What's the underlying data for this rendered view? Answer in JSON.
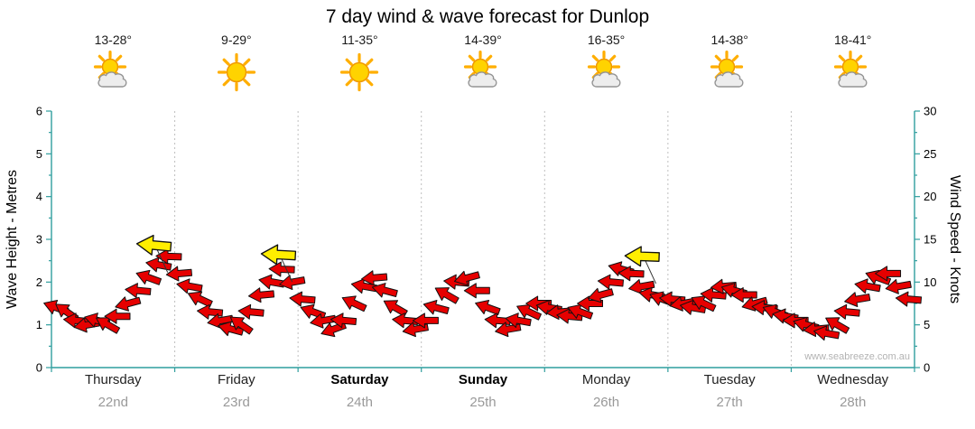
{
  "title": "7 day wind & wave forecast for Dunlop",
  "watermark": "www.seabreeze.com.au",
  "days": [
    {
      "name": "Thursday",
      "date": "22nd",
      "temp": "13-28°",
      "icon": "partly-cloudy",
      "bold": false
    },
    {
      "name": "Friday",
      "date": "23rd",
      "temp": "9-29°",
      "icon": "sunny",
      "bold": false
    },
    {
      "name": "Saturday",
      "date": "24th",
      "temp": "11-35°",
      "icon": "sunny",
      "bold": true
    },
    {
      "name": "Sunday",
      "date": "25th",
      "temp": "14-39°",
      "icon": "partly-cloudy",
      "bold": true
    },
    {
      "name": "Monday",
      "date": "26th",
      "temp": "16-35°",
      "icon": "partly-cloudy",
      "bold": false
    },
    {
      "name": "Tuesday",
      "date": "27th",
      "temp": "14-38°",
      "icon": "partly-cloudy",
      "bold": false
    },
    {
      "name": "Wednesday",
      "date": "28th",
      "temp": "18-41°",
      "icon": "partly-cloudy",
      "bold": false
    }
  ],
  "chart_data": {
    "type": "scatter",
    "marker": "wind-arrow",
    "title": "7 day wind & wave forecast for Dunlop",
    "left_axis": {
      "label": "Wave Height - Metres",
      "min": 0,
      "max": 6,
      "tick_step": 1
    },
    "right_axis": {
      "label": "Wind Speed - Knots",
      "min": 0,
      "max": 30,
      "tick_step": 5
    },
    "points_per_day": 12,
    "wind_speed_knots": [
      7,
      6.5,
      5.5,
      5,
      5.5,
      5,
      6,
      7.5,
      9,
      10.5,
      12,
      13,
      11,
      9.5,
      8,
      6.5,
      5.5,
      4.5,
      5,
      6.5,
      8.5,
      10,
      11.5,
      10,
      8,
      6.5,
      5.5,
      4.5,
      5.5,
      7.5,
      9.5,
      10.5,
      9,
      7,
      5.5,
      4.5,
      5.5,
      7,
      8.5,
      10,
      10.5,
      9,
      7,
      5.5,
      4.5,
      5.5,
      6.5,
      7.5,
      7,
      6.5,
      6,
      6.5,
      7.5,
      8.5,
      10,
      11.5,
      11,
      9.5,
      8.5,
      8,
      8,
      7.5,
      7,
      7.5,
      8.5,
      9.5,
      9,
      8.5,
      7.5,
      7,
      6.5,
      6,
      5.5,
      5,
      4.5,
      4,
      5,
      6.5,
      8,
      9.5,
      10.5,
      11,
      9.5,
      8
    ],
    "wind_direction_deg": [
      200,
      215,
      185,
      170,
      195,
      210,
      180,
      165,
      185,
      200,
      190,
      182,
      175,
      190,
      205,
      185,
      170,
      195,
      215,
      185,
      175,
      190,
      182,
      170,
      185,
      200,
      170,
      160,
      185,
      205,
      190,
      175,
      195,
      210,
      185,
      170,
      180,
      195,
      210,
      185,
      165,
      180,
      200,
      185,
      170,
      190,
      205,
      180,
      190,
      175,
      185,
      200,
      180,
      165,
      185,
      195,
      182,
      170,
      190,
      200,
      185,
      170,
      190,
      205,
      185,
      175,
      195,
      180,
      165,
      185,
      200,
      190,
      180,
      195,
      175,
      190,
      210,
      185,
      170,
      190,
      200,
      180,
      170,
      185
    ],
    "gust_markers": [
      {
        "day_index": 0,
        "day_fraction": 0.84,
        "knots": 14.3,
        "direction_deg": 185
      },
      {
        "day_index": 1,
        "day_fraction": 0.85,
        "knots": 13.2,
        "direction_deg": 183
      },
      {
        "day_index": 4,
        "day_fraction": 0.8,
        "knots": 13.0,
        "direction_deg": 182
      }
    ],
    "colors": {
      "arrow": "#e60000",
      "arrow_outline": "#111111",
      "gust_arrow": "#ffee00",
      "axis": "#2f9e9e",
      "grid": "#bfbfbf",
      "tick_text": "#000000",
      "date_text": "#999999",
      "sun": "#FFD300",
      "sun_ray": "#FFAE00",
      "cloud": "#ededed"
    }
  }
}
